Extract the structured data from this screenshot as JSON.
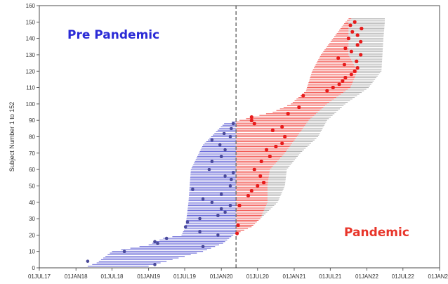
{
  "chart_data": {
    "type": "timeline",
    "ylabel": "Subject Number 1 to 152",
    "ylim": [
      0,
      160
    ],
    "yticks": [
      0,
      10,
      20,
      30,
      40,
      50,
      60,
      70,
      80,
      90,
      100,
      110,
      120,
      130,
      140,
      150,
      160
    ],
    "xticks": [
      "01JUL17",
      "01JAN18",
      "01JUL18",
      "01JAN19",
      "01JUL19",
      "01JAN20",
      "01JUL20",
      "01JAN21",
      "01JUL21",
      "01JAN22",
      "01JUL22",
      "01JAN23"
    ],
    "xlim": [
      "2017-07-01",
      "2023-01-01"
    ],
    "pandemic_start": "2020-03-15",
    "annotations": {
      "pre": "Pre Pandemic",
      "post": "Pandemic"
    },
    "colors": {
      "pre": "#6b6bd8",
      "post": "#f25a55",
      "after": "#b4b4b4",
      "pre_point": "#4a4a9a",
      "post_point": "#e81b1b",
      "divider": "#7a7a7a"
    },
    "subject_start_anchors": [
      [
        1,
        "2018-03-01"
      ],
      [
        3,
        "2018-04-15"
      ],
      [
        10,
        "2018-07-01"
      ],
      [
        14,
        "2019-01-01"
      ],
      [
        18,
        "2019-03-15"
      ],
      [
        20,
        "2019-06-15"
      ],
      [
        25,
        "2019-07-05"
      ],
      [
        40,
        "2019-07-20"
      ],
      [
        60,
        "2019-08-01"
      ],
      [
        75,
        "2019-10-01"
      ],
      [
        88,
        "2020-01-15"
      ],
      [
        90,
        "2020-04-01"
      ],
      [
        95,
        "2020-09-15"
      ],
      [
        100,
        "2020-12-15"
      ],
      [
        108,
        "2021-03-01"
      ],
      [
        120,
        "2021-04-01"
      ],
      [
        130,
        "2021-05-15"
      ],
      [
        140,
        "2021-07-15"
      ],
      [
        150,
        "2021-09-15"
      ],
      [
        152,
        "2021-10-01"
      ]
    ],
    "follow_up_anchors": [
      [
        1,
        "2019-01-01"
      ],
      [
        5,
        "2019-05-01"
      ],
      [
        10,
        "2019-10-01"
      ],
      [
        15,
        "2020-01-10"
      ],
      [
        20,
        "2020-03-01"
      ],
      [
        25,
        "2020-06-01"
      ],
      [
        30,
        "2020-07-15"
      ],
      [
        40,
        "2020-10-10"
      ],
      [
        50,
        "2020-11-15"
      ],
      [
        60,
        "2020-11-25"
      ],
      [
        70,
        "2021-02-01"
      ],
      [
        80,
        "2021-05-01"
      ],
      [
        90,
        "2021-06-15"
      ],
      [
        100,
        "2021-09-15"
      ],
      [
        110,
        "2022-01-10"
      ],
      [
        120,
        "2022-03-15"
      ],
      [
        130,
        "2022-03-20"
      ],
      [
        140,
        "2022-03-25"
      ],
      [
        150,
        "2022-04-01"
      ],
      [
        152,
        "2022-04-01"
      ]
    ],
    "observed_end_anchors": [
      [
        1,
        "2019-01-01"
      ],
      [
        5,
        "2019-05-01"
      ],
      [
        10,
        "2019-10-01"
      ],
      [
        15,
        "2020-01-10"
      ],
      [
        20,
        "2020-03-01"
      ],
      [
        25,
        "2020-06-01"
      ],
      [
        30,
        "2020-07-15"
      ],
      [
        40,
        "2020-08-20"
      ],
      [
        50,
        "2020-08-20"
      ],
      [
        60,
        "2020-09-01"
      ],
      [
        70,
        "2020-11-15"
      ],
      [
        80,
        "2021-01-15"
      ],
      [
        90,
        "2021-03-15"
      ],
      [
        100,
        "2021-06-15"
      ],
      [
        110,
        "2021-10-10"
      ],
      [
        120,
        "2021-11-15"
      ],
      [
        130,
        "2021-10-01"
      ],
      [
        140,
        "2021-10-01"
      ],
      [
        150,
        "2021-10-01"
      ],
      [
        152,
        "2021-10-15"
      ]
    ],
    "pre_pandemic_events": [
      [
        2,
        "2019-02-01"
      ],
      [
        4,
        "2018-03-01"
      ],
      [
        10,
        "2018-09-01"
      ],
      [
        13,
        "2019-10-01"
      ],
      [
        15,
        "2019-02-15"
      ],
      [
        16,
        "2019-02-01"
      ],
      [
        18,
        "2019-04-01"
      ],
      [
        20,
        "2019-12-15"
      ],
      [
        22,
        "2019-09-15"
      ],
      [
        25,
        "2019-07-05"
      ],
      [
        28,
        "2019-07-15"
      ],
      [
        30,
        "2019-09-15"
      ],
      [
        32,
        "2019-12-15"
      ],
      [
        34,
        "2020-01-20"
      ],
      [
        36,
        "2020-01-01"
      ],
      [
        38,
        "2020-02-15"
      ],
      [
        40,
        "2019-11-15"
      ],
      [
        42,
        "2019-10-01"
      ],
      [
        45,
        "2020-01-01"
      ],
      [
        48,
        "2019-08-10"
      ],
      [
        50,
        "2020-02-15"
      ],
      [
        54,
        "2020-02-20"
      ],
      [
        56,
        "2020-01-20"
      ],
      [
        58,
        "2020-03-01"
      ],
      [
        60,
        "2019-11-01"
      ],
      [
        65,
        "2019-11-15"
      ],
      [
        68,
        "2020-01-01"
      ],
      [
        72,
        "2020-01-20"
      ],
      [
        75,
        "2019-12-25"
      ],
      [
        78,
        "2019-11-15"
      ],
      [
        80,
        "2020-02-15"
      ],
      [
        82,
        "2020-01-15"
      ],
      [
        85,
        "2020-02-20"
      ],
      [
        88,
        "2020-03-01"
      ]
    ],
    "pandemic_events": [
      [
        21,
        "2020-03-20"
      ],
      [
        26,
        "2020-03-25"
      ],
      [
        38,
        "2020-04-01"
      ],
      [
        44,
        "2020-05-15"
      ],
      [
        47,
        "2020-06-01"
      ],
      [
        50,
        "2020-07-01"
      ],
      [
        52,
        "2020-08-01"
      ],
      [
        56,
        "2020-07-15"
      ],
      [
        60,
        "2020-06-15"
      ],
      [
        65,
        "2020-07-20"
      ],
      [
        68,
        "2020-09-01"
      ],
      [
        72,
        "2020-08-15"
      ],
      [
        74,
        "2020-10-01"
      ],
      [
        76,
        "2020-11-01"
      ],
      [
        80,
        "2020-11-15"
      ],
      [
        84,
        "2020-09-15"
      ],
      [
        86,
        "2020-11-01"
      ],
      [
        88,
        "2020-06-15"
      ],
      [
        90,
        "2020-06-01"
      ],
      [
        92,
        "2020-06-01"
      ],
      [
        94,
        "2020-12-01"
      ],
      [
        98,
        "2021-01-25"
      ],
      [
        105,
        "2021-02-15"
      ],
      [
        108,
        "2021-06-15"
      ],
      [
        110,
        "2021-07-15"
      ],
      [
        112,
        "2021-08-15"
      ],
      [
        114,
        "2021-09-01"
      ],
      [
        116,
        "2021-09-15"
      ],
      [
        118,
        "2021-10-15"
      ],
      [
        120,
        "2021-11-01"
      ],
      [
        122,
        "2021-11-15"
      ],
      [
        124,
        "2021-09-10"
      ],
      [
        126,
        "2021-11-10"
      ],
      [
        128,
        "2021-08-10"
      ],
      [
        130,
        "2021-12-01"
      ],
      [
        132,
        "2021-10-15"
      ],
      [
        134,
        "2021-09-15"
      ],
      [
        136,
        "2021-11-15"
      ],
      [
        138,
        "2021-12-01"
      ],
      [
        140,
        "2021-10-01"
      ],
      [
        142,
        "2021-11-15"
      ],
      [
        144,
        "2021-10-20"
      ],
      [
        146,
        "2021-12-05"
      ],
      [
        148,
        "2021-10-10"
      ],
      [
        150,
        "2021-11-01"
      ]
    ]
  }
}
